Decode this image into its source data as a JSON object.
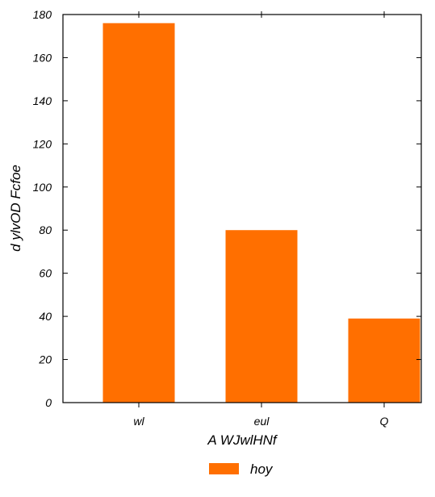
{
  "chart_data": {
    "type": "bar",
    "categories": [
      "wl",
      "eul",
      "Q"
    ],
    "series": [
      {
        "name": "hoy",
        "values": [
          176,
          80,
          39
        ],
        "color": "#ff6f00"
      }
    ],
    "xlabel": "A WJwlHNf",
    "ylabel": "d ylvOD Fcfoe",
    "ylim": [
      0,
      180
    ],
    "yticks": [
      0,
      20,
      40,
      60,
      80,
      100,
      120,
      140,
      160,
      180
    ],
    "grid": false,
    "legend_position": "bottom-center"
  }
}
